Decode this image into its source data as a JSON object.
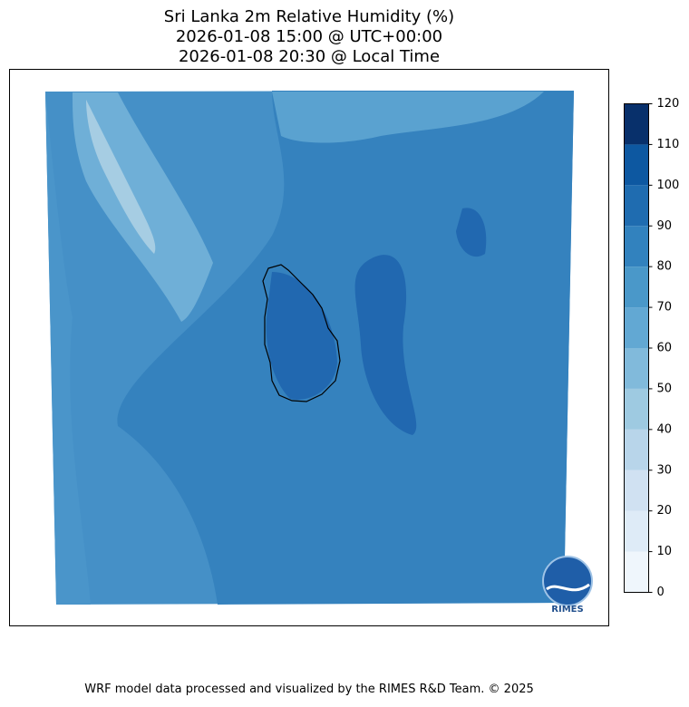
{
  "title": [
    "Sri Lanka 2m Relative Humidity (%)",
    "2026-01-08 15:00 @ UTC+00:00",
    "2026-01-08 20:30 @ Local Time"
  ],
  "colorbar": {
    "ticks": [
      0,
      10,
      20,
      30,
      40,
      50,
      60,
      70,
      80,
      90,
      100,
      110,
      120
    ],
    "colors": [
      "#eff6fc",
      "#deebf7",
      "#d0e1f2",
      "#b8d5ea",
      "#9ecae1",
      "#81badb",
      "#62a8d3",
      "#4a98c9",
      "#3282be",
      "#1f6cb0",
      "#0d58a1",
      "#08306b"
    ]
  },
  "logo": "RIMES",
  "footer": "WRF model data processed and visualized by the RIMES R&D Team. © 2025"
}
